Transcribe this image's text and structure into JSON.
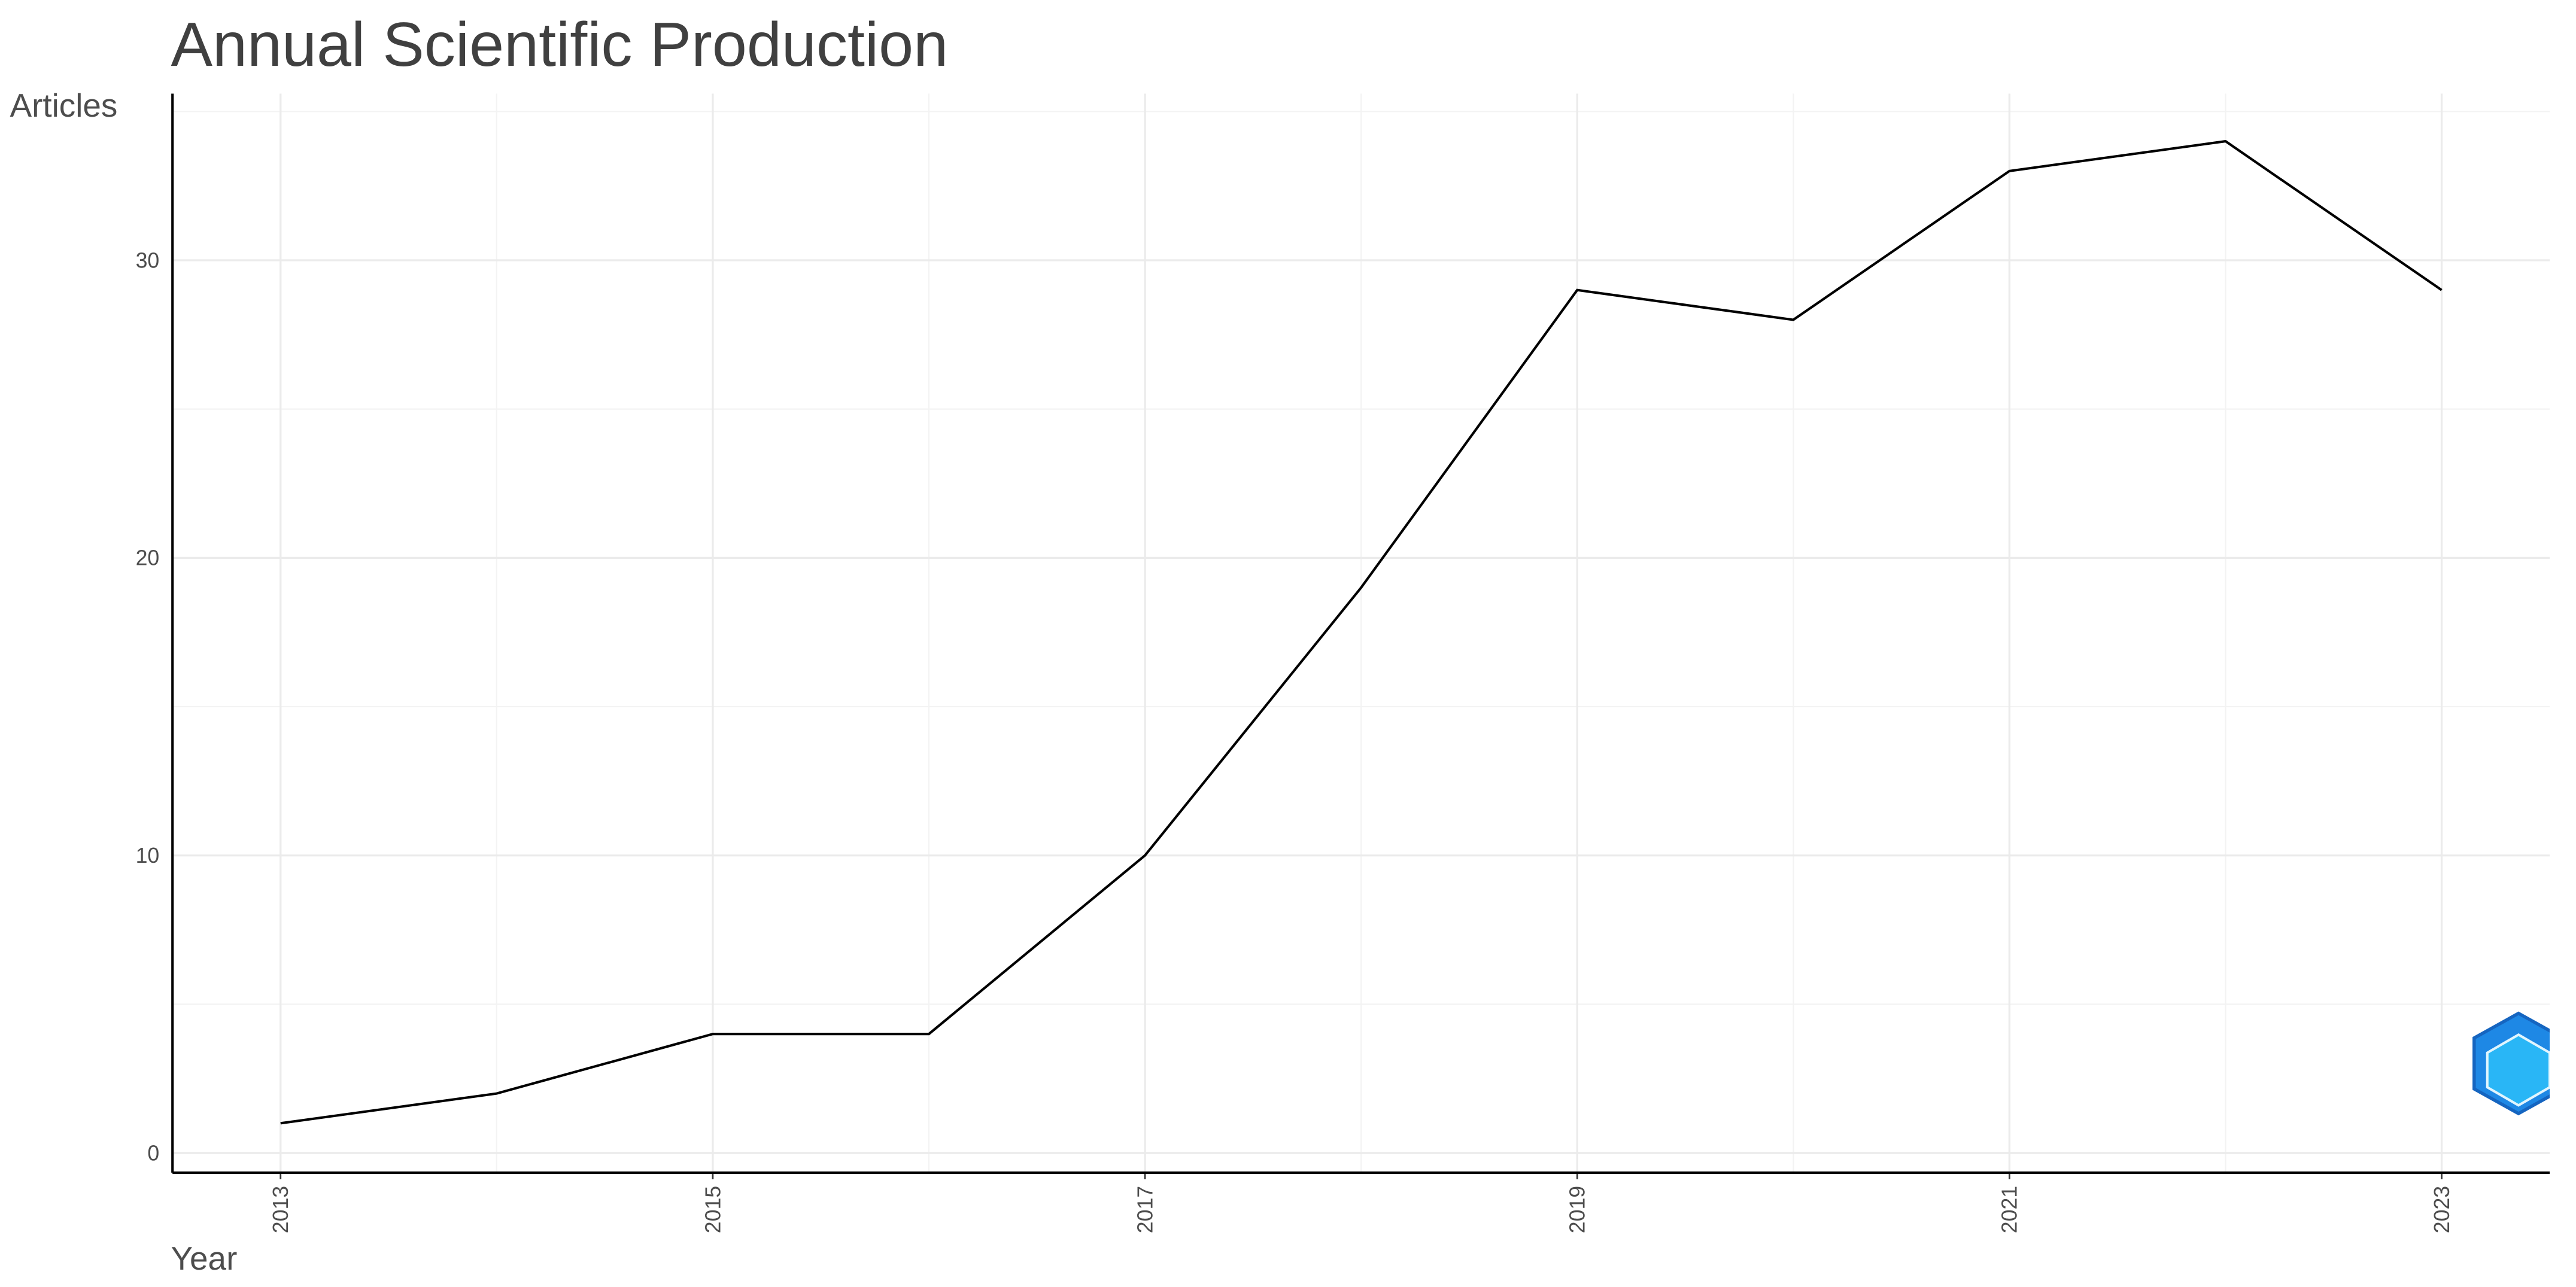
{
  "chart_data": {
    "type": "line",
    "title": "Annual Scientific Production",
    "x_label": "Year",
    "y_label": "Articles",
    "x": [
      2013,
      2014,
      2015,
      2016,
      2017,
      2018,
      2019,
      2020,
      2021,
      2022,
      2023
    ],
    "series": [
      {
        "name": "Articles",
        "color": "#000000",
        "values": [
          1,
          2,
          4,
          4,
          10,
          19,
          29,
          28,
          33,
          34,
          29
        ]
      }
    ],
    "xlim": [
      2012.5,
      2023.5
    ],
    "xticks": [
      2013,
      2015,
      2017,
      2019,
      2021,
      2023
    ],
    "ylim": [
      -0.66,
      35.6
    ],
    "yticks": [
      0,
      10,
      20,
      30
    ],
    "grid": true
  }
}
